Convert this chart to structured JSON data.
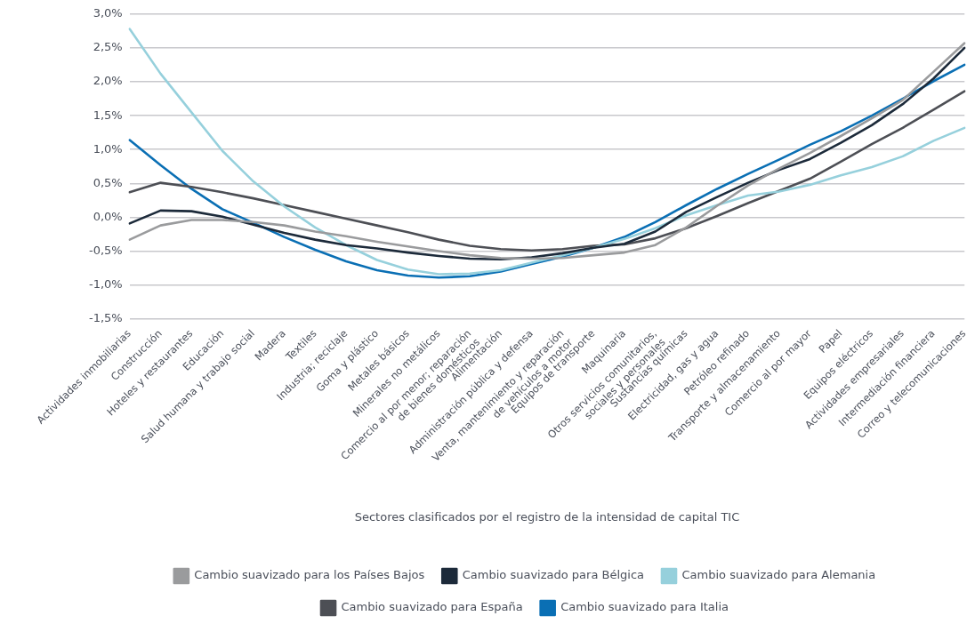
{
  "chart_data": {
    "type": "line",
    "xlabel": "Sectores clasificados por el registro de la intensidad de capital TIC",
    "categories": [
      "Actividades inmobiliarias",
      "Construcción",
      "Hoteles y restaurantes",
      "Educación",
      "Salud humana y trabajo social",
      "Madera",
      "Textiles",
      "Industria; reciclaje",
      "Goma y plástico",
      "Metales básicos",
      "Minerales no metálicos",
      "Comercio al por menor; reparación\nde bienes domésticos",
      "Alimentación",
      "Administración pública y defensa",
      "Venta, mantenimiento y reparación\nde vehículos a motor",
      "Equipos de transporte",
      "Maquinaria",
      "Otros servicios comunitarios,\nsociales y personales",
      "Sustancias químicas",
      "Electricidad, gas y agua",
      "Petróleo refinado",
      "Transporte y almacenamiento",
      "Comercio al por mayor",
      "Papel",
      "Equipos eléctricos",
      "Actividades empresariales",
      "Intermediación financiera",
      "Correo y telecomunicaciones"
    ],
    "series": [
      {
        "name": "Cambio suavizado para los Países Bajos",
        "color": "#9a9b9d",
        "values": [
          -0.33,
          -0.12,
          -0.04,
          -0.04,
          -0.07,
          -0.12,
          -0.21,
          -0.28,
          -0.36,
          -0.43,
          -0.5,
          -0.56,
          -0.6,
          -0.61,
          -0.6,
          -0.56,
          -0.52,
          -0.41,
          -0.15,
          0.17,
          0.47,
          0.72,
          0.95,
          1.2,
          1.46,
          1.73,
          2.15,
          2.57
        ]
      },
      {
        "name": "Cambio suavizado para Bélgica",
        "color": "#1c2a3a",
        "values": [
          -0.09,
          0.1,
          0.09,
          0.01,
          -0.11,
          -0.23,
          -0.33,
          -0.41,
          -0.46,
          -0.52,
          -0.57,
          -0.61,
          -0.62,
          -0.59,
          -0.53,
          -0.45,
          -0.39,
          -0.21,
          0.08,
          0.3,
          0.51,
          0.7,
          0.86,
          1.1,
          1.36,
          1.67,
          2.05,
          2.5
        ]
      },
      {
        "name": "Cambio suavizado para Alemania",
        "color": "#96d0dc",
        "values": [
          2.78,
          2.12,
          1.55,
          0.98,
          0.53,
          0.16,
          -0.15,
          -0.41,
          -0.63,
          -0.77,
          -0.84,
          -0.83,
          -0.78,
          -0.67,
          -0.56,
          -0.45,
          -0.32,
          -0.16,
          0.03,
          0.18,
          0.32,
          0.38,
          0.48,
          0.62,
          0.74,
          0.9,
          1.13,
          1.32
        ]
      },
      {
        "name": "Cambio suavizado para España",
        "color": "#4d4f55",
        "values": [
          0.37,
          0.51,
          0.45,
          0.37,
          0.28,
          0.18,
          0.08,
          -0.02,
          -0.12,
          -0.22,
          -0.33,
          -0.42,
          -0.47,
          -0.49,
          -0.47,
          -0.42,
          -0.4,
          -0.31,
          -0.16,
          0.02,
          0.21,
          0.39,
          0.57,
          0.82,
          1.08,
          1.32,
          1.59,
          1.86
        ]
      },
      {
        "name": "Cambio suavizado para Italia",
        "color": "#0a6fb4",
        "values": [
          1.14,
          0.77,
          0.42,
          0.12,
          -0.08,
          -0.29,
          -0.48,
          -0.65,
          -0.78,
          -0.86,
          -0.89,
          -0.87,
          -0.8,
          -0.69,
          -0.58,
          -0.45,
          -0.29,
          -0.07,
          0.18,
          0.42,
          0.64,
          0.85,
          1.07,
          1.27,
          1.5,
          1.75,
          2.01,
          2.25
        ]
      }
    ],
    "ylim": [
      -1.5,
      3
    ],
    "yticks": [
      {
        "value": -1.5,
        "label": "-1,5%"
      },
      {
        "value": -1,
        "label": "-1,0%"
      },
      {
        "value": -0.5,
        "label": "-0,5%"
      },
      {
        "value": 0,
        "label": "0,0%"
      },
      {
        "value": 0.5,
        "label": "0,5%"
      },
      {
        "value": 1,
        "label": "1,0%"
      },
      {
        "value": 1.5,
        "label": "1,5%"
      },
      {
        "value": 2,
        "label": "2,0%"
      },
      {
        "value": 2.5,
        "label": "2,5%"
      },
      {
        "value": 3,
        "label": "3,0%"
      }
    ],
    "grid": "y",
    "legend": "bottom",
    "marker": "none",
    "line_style": "solid"
  }
}
